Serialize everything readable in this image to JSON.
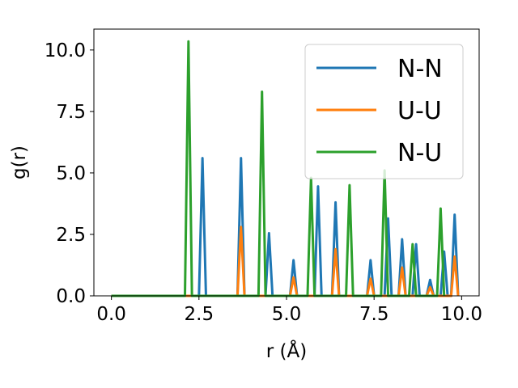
{
  "chart_data": {
    "type": "line",
    "xlabel": "r (Å)",
    "ylabel": "g(r)",
    "xlim": [
      -0.5,
      10.5
    ],
    "ylim": [
      0.0,
      10.85
    ],
    "xticks": [
      0.0,
      2.5,
      5.0,
      7.5,
      10.0
    ],
    "xtick_labels": [
      "0.0",
      "2.5",
      "5.0",
      "7.5",
      "10.0"
    ],
    "yticks": [
      0.0,
      2.5,
      5.0,
      7.5,
      10.0
    ],
    "ytick_labels": [
      "0.0",
      "2.5",
      "5.0",
      "7.5",
      "10.0"
    ],
    "grid": false,
    "legend_position": "top-right",
    "series": [
      {
        "name": "N-N",
        "color": "#1f77b4",
        "x": [
          0.0,
          2.5,
          2.6,
          2.7,
          3.6,
          3.7,
          3.8,
          4.4,
          4.5,
          4.6,
          5.1,
          5.2,
          5.3,
          5.8,
          5.9,
          6.0,
          6.3,
          6.4,
          6.5,
          7.3,
          7.4,
          7.5,
          7.8,
          7.9,
          8.0,
          8.2,
          8.3,
          8.4,
          8.6,
          8.7,
          8.8,
          9.0,
          9.1,
          9.2,
          9.4,
          9.5,
          9.6,
          9.7,
          9.8,
          9.9
        ],
        "y": [
          0.0,
          0.0,
          5.6,
          0.0,
          0.0,
          5.6,
          0.0,
          0.0,
          2.55,
          0.0,
          0.0,
          1.45,
          0.0,
          0.0,
          4.45,
          0.0,
          0.0,
          3.8,
          0.0,
          0.0,
          1.45,
          0.0,
          0.0,
          3.15,
          0.0,
          0.0,
          2.3,
          0.0,
          0.0,
          2.1,
          0.0,
          0.0,
          0.65,
          0.0,
          0.0,
          1.8,
          0.0,
          0.0,
          3.3,
          0.0
        ]
      },
      {
        "name": "U-U",
        "color": "#ff7f0e",
        "x": [
          0.0,
          3.6,
          3.7,
          3.8,
          5.1,
          5.2,
          5.3,
          6.3,
          6.4,
          6.5,
          7.3,
          7.4,
          7.5,
          8.2,
          8.3,
          8.4,
          9.0,
          9.1,
          9.2,
          9.7,
          9.8,
          9.9
        ],
        "y": [
          0.0,
          0.0,
          2.8,
          0.0,
          0.0,
          0.75,
          0.0,
          0.0,
          1.9,
          0.0,
          0.0,
          0.7,
          0.0,
          0.0,
          1.15,
          0.0,
          0.0,
          0.35,
          0.0,
          0.0,
          1.6,
          0.0
        ]
      },
      {
        "name": "N-U",
        "color": "#2ca02c",
        "x": [
          0.0,
          2.1,
          2.2,
          2.3,
          4.2,
          4.3,
          4.4,
          5.6,
          5.7,
          5.8,
          6.7,
          6.8,
          6.9,
          7.7,
          7.8,
          7.9,
          8.5,
          8.6,
          8.7,
          9.3,
          9.4,
          9.5
        ],
        "y": [
          0.0,
          0.0,
          10.35,
          0.0,
          0.0,
          8.3,
          0.0,
          0.0,
          4.8,
          0.0,
          0.0,
          4.5,
          0.0,
          0.0,
          5.1,
          0.0,
          0.0,
          2.1,
          0.0,
          0.0,
          3.55,
          0.0
        ]
      }
    ]
  }
}
